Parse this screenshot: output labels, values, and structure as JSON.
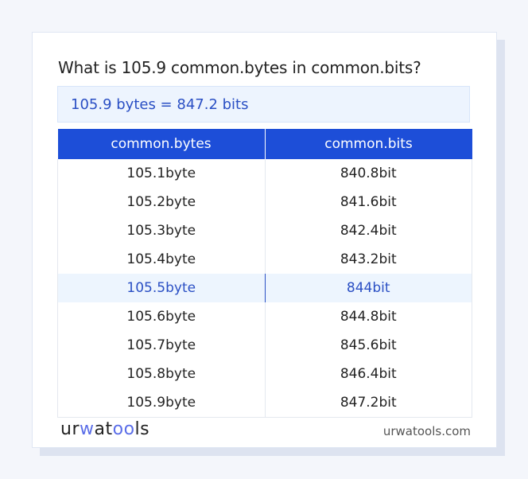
{
  "title": "What is 105.9 common.bytes in common.bits?",
  "result": "105.9 bytes = 847.2 bits",
  "table": {
    "headers": [
      "common.bytes",
      "common.bits"
    ],
    "rows": [
      [
        "105.1byte",
        "840.8bit"
      ],
      [
        "105.2byte",
        "841.6bit"
      ],
      [
        "105.3byte",
        "842.4bit"
      ],
      [
        "105.4byte",
        "843.2bit"
      ],
      [
        "105.5byte",
        "844bit"
      ],
      [
        "105.6byte",
        "844.8bit"
      ],
      [
        "105.7byte",
        "845.6bit"
      ],
      [
        "105.8byte",
        "846.4bit"
      ],
      [
        "105.9byte",
        "847.2bit"
      ]
    ],
    "highlighted_row": 4
  },
  "footer": {
    "logo": "urwatools",
    "site": "urwatools.com"
  },
  "colors": {
    "accent": "#1d4ed8",
    "highlight_text": "#2a4fc4",
    "highlight_bg": "#edf5fe"
  }
}
